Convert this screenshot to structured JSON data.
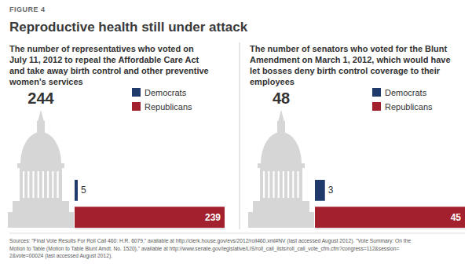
{
  "figure_label": "FIGURE 4",
  "title": "Reproductive health still under attack",
  "source": [
    "Sources: \"Final Vote Results For Roll Call 460: H.R. 6079,\" available at http://clerk.house.gov/evs/2012/roll460.xml#NV (last accessed August 2012). \"Vote Summary: On the",
    "Motion to Table (Motion to Table Blunt Amdt. No. 1520),\" available at http://www.senate.gov/legislative/LIS/roll_call_lists/roll_call_vote_cfm.cfm?congress=112&session=",
    "2&vote=00024 (last accessed August 2012)."
  ],
  "chart_data": [
    {
      "type": "bar",
      "orientation": "horizontal",
      "subtitle": [
        "The number of representatives who voted on",
        "July 11, 2012 to repeal the Affordable Care Act",
        "and take away birth control and other preventive",
        "women's services"
      ],
      "total": 244,
      "categories": [
        "Democrats",
        "Republicans"
      ],
      "values": [
        5,
        239
      ],
      "colors": [
        "#1f3a6b",
        "#a3202e"
      ],
      "xlim": [
        0,
        239
      ],
      "xticks": [],
      "data_labels": true,
      "tick_labels": false,
      "legend": "top-right"
    },
    {
      "type": "bar",
      "orientation": "horizontal",
      "subtitle": [
        "The number of senators who voted for the Blunt",
        "Amendment on March 1, 2012, which would have",
        "let bosses deny birth control coverage to their",
        "employees"
      ],
      "total": 48,
      "categories": [
        "Democrats",
        "Republicans"
      ],
      "values": [
        3,
        45
      ],
      "colors": [
        "#1f3a6b",
        "#a3202e"
      ],
      "xlim": [
        0,
        45
      ],
      "xticks": [],
      "data_labels": true,
      "tick_labels": false,
      "legend": "top-right"
    }
  ]
}
